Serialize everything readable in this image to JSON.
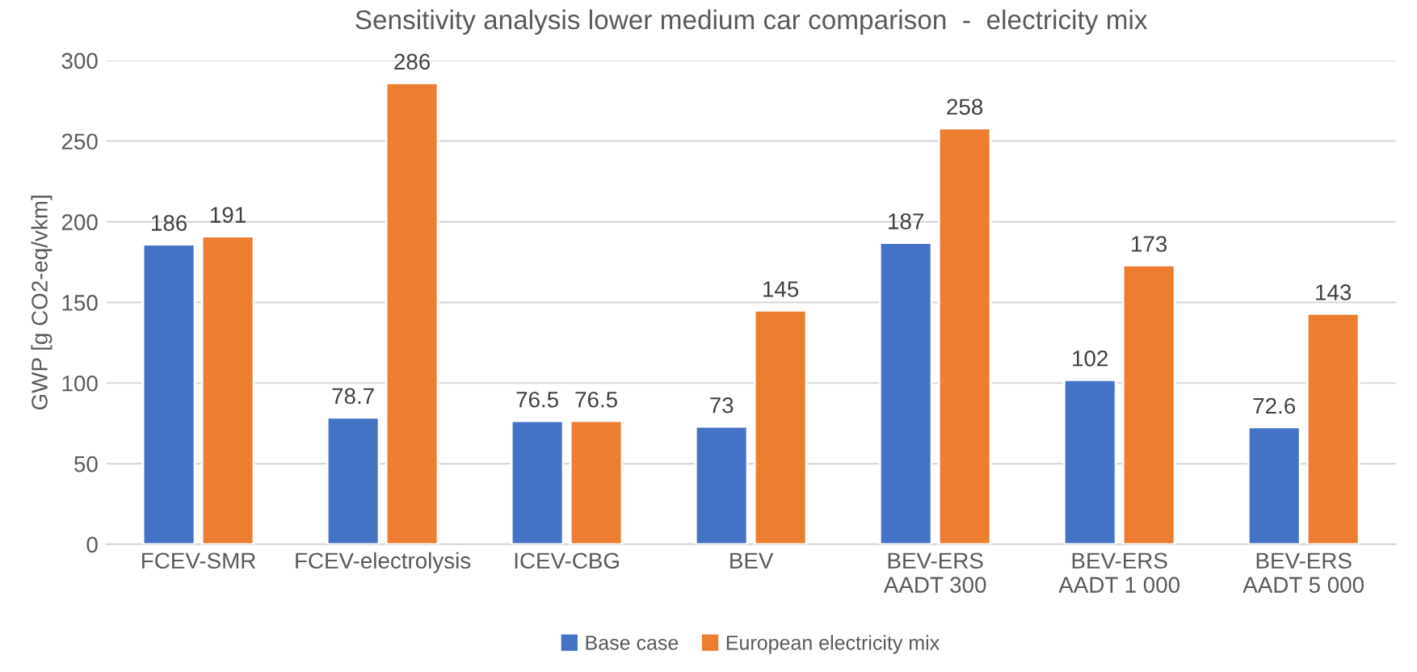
{
  "chart_data": {
    "type": "bar",
    "title": "Sensitivity analysis lower medium car comparison  -  electricity mix",
    "ylabel": "GWP [g CO2-eq/vkm]",
    "categories": [
      "FCEV-SMR",
      "FCEV-electrolysis",
      "ICEV-CBG",
      "BEV",
      "BEV-ERS\nAADT 300",
      "BEV-ERS\nAADT 1 000",
      "BEV-ERS\nAADT 5 000"
    ],
    "series": [
      {
        "name": "Base case",
        "color": "#4472c4",
        "values": [
          186,
          78.7,
          76.5,
          73,
          187,
          102,
          72.6
        ]
      },
      {
        "name": "European electricity mix",
        "color": "#ed7d31",
        "values": [
          191,
          286,
          76.5,
          145,
          258,
          173,
          143
        ]
      }
    ],
    "ylim": [
      0,
      300
    ],
    "yticks": [
      0,
      50,
      100,
      150,
      200,
      250,
      300
    ],
    "grid": "y",
    "legend": "bottom",
    "data_labels": true
  }
}
